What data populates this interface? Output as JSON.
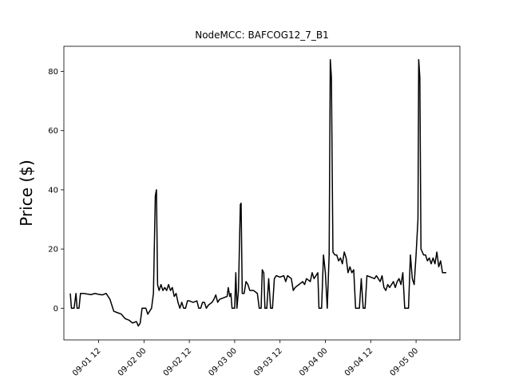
{
  "chart_data": {
    "type": "line",
    "title": "NodeMCC: BAFCOG12_7_B1",
    "xlabel": "",
    "ylabel": "Price ($)",
    "x_axis_kind": "datetime-hours",
    "x_ticks": [
      {
        "label": "09-01 12",
        "value": 12
      },
      {
        "label": "09-02 00",
        "value": 24
      },
      {
        "label": "09-02 12",
        "value": 36
      },
      {
        "label": "09-03 00",
        "value": 48
      },
      {
        "label": "09-03 12",
        "value": 60
      },
      {
        "label": "09-04 00",
        "value": 72
      },
      {
        "label": "09-04 12",
        "value": 84
      },
      {
        "label": "09-05 00",
        "value": 96
      }
    ],
    "y_ticks": [
      0,
      20,
      40,
      60,
      80
    ],
    "xlim": [
      2.8,
      107.6
    ],
    "ylim": [
      -10.7,
      88.5
    ],
    "grid": false,
    "line_color": "#000000",
    "series": [
      {
        "points": [
          [
            4.5,
            5
          ],
          [
            4.8,
            0
          ],
          [
            5.5,
            0
          ],
          [
            6.0,
            5
          ],
          [
            6.3,
            0
          ],
          [
            6.8,
            0
          ],
          [
            7.2,
            5
          ],
          [
            8.0,
            5
          ],
          [
            9.0,
            4.8
          ],
          [
            10.0,
            4.6
          ],
          [
            11.0,
            5
          ],
          [
            12.0,
            4.7
          ],
          [
            13.0,
            4.5
          ],
          [
            14.0,
            5
          ],
          [
            15.0,
            3
          ],
          [
            16.0,
            -1
          ],
          [
            17.0,
            -1.5
          ],
          [
            18.0,
            -2
          ],
          [
            19.0,
            -3.5
          ],
          [
            20.0,
            -4
          ],
          [
            21.0,
            -5
          ],
          [
            22.0,
            -4.5
          ],
          [
            22.5,
            -6
          ],
          [
            23.0,
            -5
          ],
          [
            23.5,
            0
          ],
          [
            24.5,
            0
          ],
          [
            25.0,
            -2
          ],
          [
            26.0,
            0
          ],
          [
            26.5,
            5
          ],
          [
            27.0,
            38
          ],
          [
            27.3,
            40
          ],
          [
            27.6,
            8
          ],
          [
            28.0,
            6
          ],
          [
            28.5,
            8
          ],
          [
            29.0,
            6
          ],
          [
            29.5,
            7
          ],
          [
            30.0,
            6
          ],
          [
            30.5,
            8
          ],
          [
            31.0,
            6
          ],
          [
            31.5,
            7
          ],
          [
            32.0,
            4
          ],
          [
            32.5,
            5
          ],
          [
            33.0,
            2
          ],
          [
            33.5,
            0
          ],
          [
            34.0,
            2
          ],
          [
            34.5,
            0
          ],
          [
            35.0,
            0
          ],
          [
            35.5,
            2.5
          ],
          [
            36.0,
            2.5
          ],
          [
            37.0,
            2
          ],
          [
            38.0,
            2.5
          ],
          [
            38.5,
            0
          ],
          [
            39.0,
            0
          ],
          [
            39.5,
            2
          ],
          [
            40.0,
            2
          ],
          [
            40.5,
            0
          ],
          [
            41.0,
            1
          ],
          [
            42.0,
            2
          ],
          [
            42.5,
            3
          ],
          [
            43.0,
            4.5
          ],
          [
            43.5,
            2
          ],
          [
            44.0,
            3
          ],
          [
            45.0,
            3.5
          ],
          [
            46.0,
            4
          ],
          [
            46.3,
            7
          ],
          [
            46.7,
            4
          ],
          [
            47.0,
            5
          ],
          [
            47.3,
            0
          ],
          [
            48.0,
            0
          ],
          [
            48.3,
            12
          ],
          [
            48.6,
            0
          ],
          [
            49.0,
            6
          ],
          [
            49.5,
            35
          ],
          [
            49.7,
            35.5
          ],
          [
            50.0,
            5
          ],
          [
            50.5,
            5
          ],
          [
            51.0,
            9
          ],
          [
            51.5,
            8
          ],
          [
            52.0,
            6
          ],
          [
            53.0,
            6
          ],
          [
            54.0,
            5
          ],
          [
            54.5,
            0
          ],
          [
            55.0,
            0
          ],
          [
            55.3,
            13
          ],
          [
            55.7,
            12
          ],
          [
            56.0,
            0
          ],
          [
            56.5,
            0
          ],
          [
            57.0,
            10
          ],
          [
            57.5,
            0
          ],
          [
            58.0,
            0
          ],
          [
            58.5,
            10
          ],
          [
            59.0,
            11
          ],
          [
            60.0,
            10.5
          ],
          [
            61.0,
            11
          ],
          [
            61.5,
            9
          ],
          [
            62.0,
            11
          ],
          [
            63.0,
            10
          ],
          [
            63.5,
            6
          ],
          [
            64.0,
            7
          ],
          [
            65.0,
            8
          ],
          [
            66.0,
            9
          ],
          [
            66.5,
            8
          ],
          [
            67.0,
            10
          ],
          [
            68.0,
            9
          ],
          [
            68.5,
            12
          ],
          [
            69.0,
            10
          ],
          [
            69.5,
            11
          ],
          [
            70.0,
            12
          ],
          [
            70.3,
            0
          ],
          [
            71.0,
            0
          ],
          [
            71.5,
            18
          ],
          [
            72.0,
            12
          ],
          [
            72.5,
            0
          ],
          [
            73.0,
            18
          ],
          [
            73.3,
            84
          ],
          [
            73.6,
            78
          ],
          [
            74.0,
            19
          ],
          [
            74.5,
            18
          ],
          [
            75.0,
            18
          ],
          [
            75.5,
            16
          ],
          [
            76.0,
            17
          ],
          [
            76.5,
            15
          ],
          [
            77.0,
            19
          ],
          [
            77.5,
            17
          ],
          [
            78.0,
            12
          ],
          [
            78.5,
            14
          ],
          [
            79.0,
            12
          ],
          [
            79.5,
            13
          ],
          [
            80.0,
            0
          ],
          [
            81.0,
            0
          ],
          [
            81.5,
            10
          ],
          [
            82.0,
            0
          ],
          [
            82.5,
            0
          ],
          [
            83.0,
            11
          ],
          [
            84.0,
            10.5
          ],
          [
            85.0,
            10
          ],
          [
            85.5,
            11
          ],
          [
            86.0,
            10
          ],
          [
            86.5,
            9
          ],
          [
            87.0,
            11
          ],
          [
            87.5,
            7
          ],
          [
            88.0,
            6
          ],
          [
            88.5,
            8
          ],
          [
            89.0,
            7
          ],
          [
            89.5,
            8
          ],
          [
            90.0,
            9
          ],
          [
            90.5,
            7
          ],
          [
            91.0,
            9
          ],
          [
            91.5,
            10
          ],
          [
            92.0,
            8
          ],
          [
            92.5,
            12
          ],
          [
            93.0,
            0
          ],
          [
            94.0,
            0
          ],
          [
            94.5,
            18
          ],
          [
            95.0,
            10
          ],
          [
            95.5,
            8
          ],
          [
            96.0,
            18
          ],
          [
            96.5,
            30
          ],
          [
            96.7,
            84
          ],
          [
            97.0,
            78
          ],
          [
            97.3,
            20
          ],
          [
            98.0,
            18
          ],
          [
            98.5,
            18
          ],
          [
            99.0,
            16
          ],
          [
            99.5,
            17
          ],
          [
            100.0,
            15
          ],
          [
            100.5,
            17
          ],
          [
            101.0,
            15
          ],
          [
            101.5,
            19
          ],
          [
            102.0,
            14
          ],
          [
            102.5,
            16
          ],
          [
            103.0,
            12
          ],
          [
            104.0,
            12
          ]
        ]
      }
    ]
  }
}
